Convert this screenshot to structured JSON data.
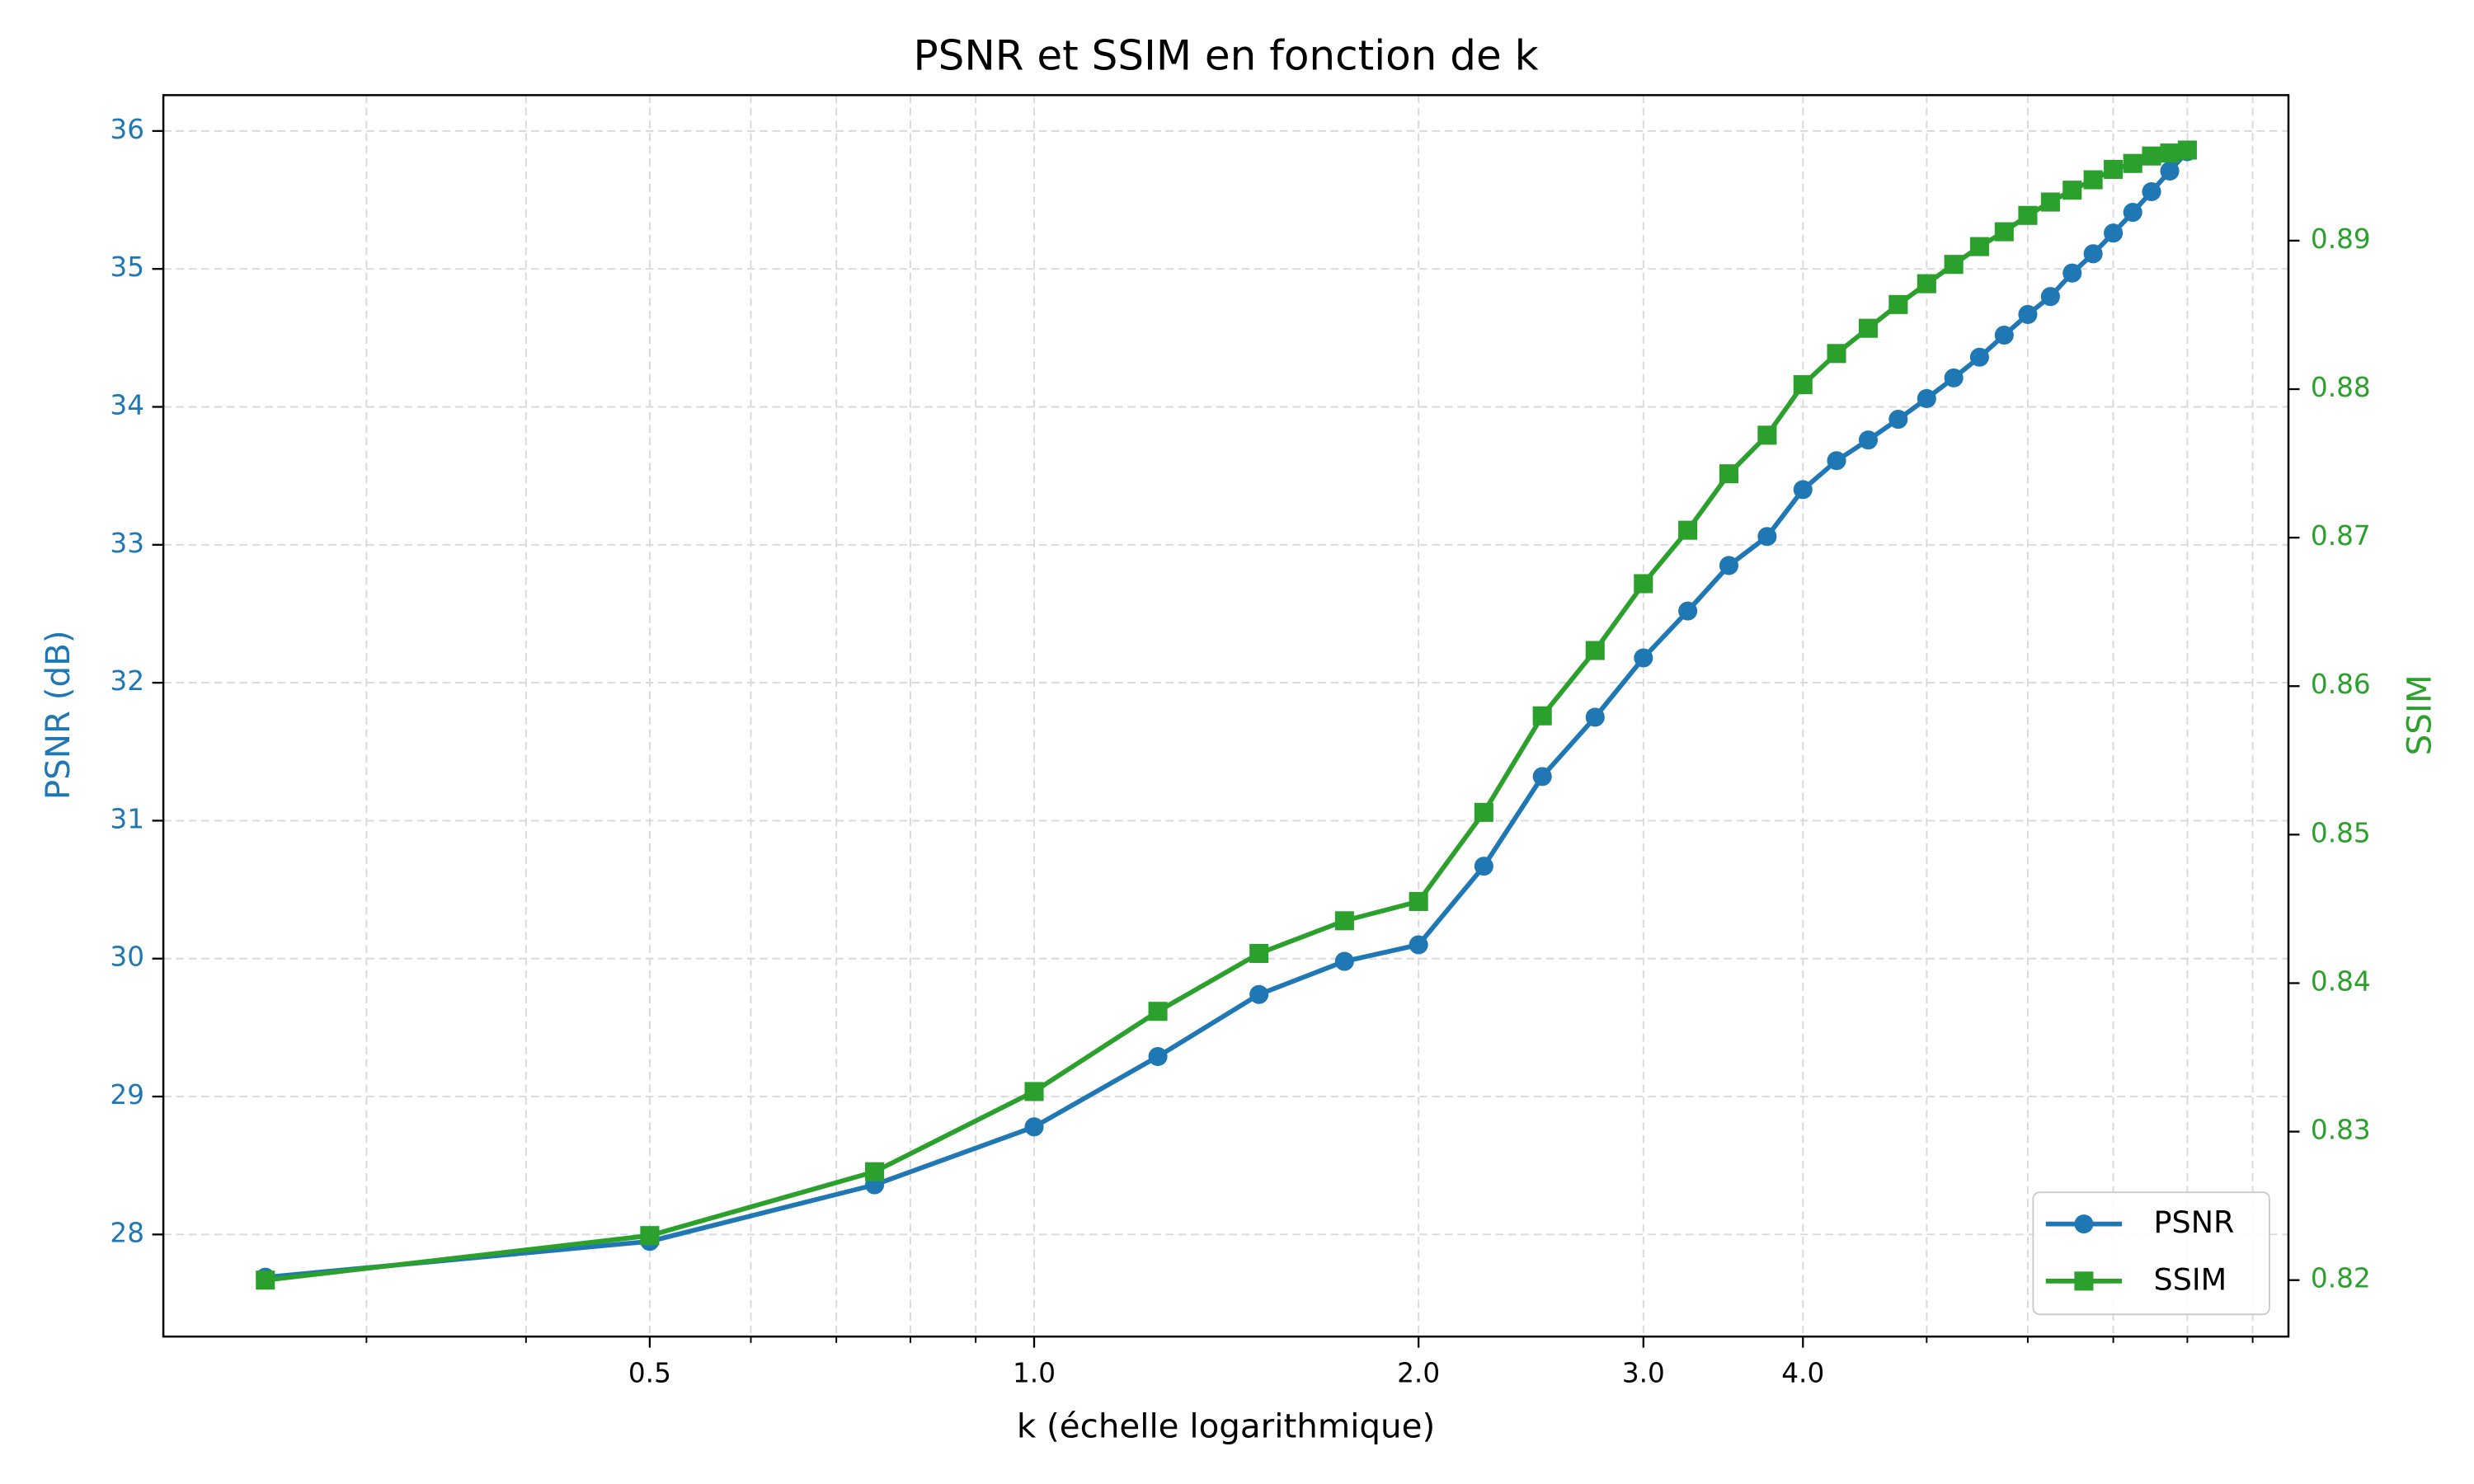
{
  "chart_data": {
    "type": "line",
    "title": "PSNR et SSIM en fonction de k",
    "xlabel": "k (échelle logarithmique)",
    "ylabel": "PSNR (dB)",
    "y2label": "SSIM",
    "xscale": "log",
    "x": [
      0.25,
      0.5,
      0.75,
      1.0,
      1.25,
      1.5,
      1.75,
      2.0,
      2.25,
      2.5,
      2.75,
      3.0,
      3.25,
      3.5,
      3.75,
      4.0,
      4.25,
      4.5,
      4.75,
      5.0,
      5.25,
      5.5,
      5.75,
      6.0,
      6.25,
      6.5,
      6.75,
      7.0,
      7.25,
      7.5,
      7.75,
      8.0
    ],
    "series": [
      {
        "name": "PSNR",
        "color": "#1f77b4",
        "marker": "circle",
        "axis": "y",
        "values": [
          27.69,
          27.95,
          28.36,
          28.78,
          29.29,
          29.74,
          29.98,
          30.1,
          30.67,
          31.32,
          31.75,
          32.18,
          32.52,
          32.85,
          33.06,
          33.4,
          33.61,
          33.76,
          33.91,
          34.06,
          34.21,
          34.36,
          34.52,
          34.67,
          34.8,
          34.97,
          35.11,
          35.26,
          35.41,
          35.56,
          35.71,
          35.85
        ]
      },
      {
        "name": "SSIM",
        "color": "#2ca02c",
        "marker": "square",
        "axis": "y2",
        "values": [
          0.82,
          0.823,
          0.8273,
          0.8327,
          0.8381,
          0.842,
          0.8442,
          0.8455,
          0.8515,
          0.858,
          0.8624,
          0.8669,
          0.8705,
          0.8743,
          0.8769,
          0.8803,
          0.8824,
          0.8841,
          0.8857,
          0.8871,
          0.8884,
          0.8896,
          0.8906,
          0.8917,
          0.8926,
          0.8934,
          0.8941,
          0.8948,
          0.8952,
          0.8957,
          0.8959,
          0.8961
        ]
      }
    ],
    "xlim": [
      0.208,
      9.6
    ],
    "xticks": [
      {
        "value": 0.5,
        "label": "0.5"
      },
      {
        "value": 1,
        "label": "1.0"
      },
      {
        "value": 2,
        "label": "2.0"
      },
      {
        "value": 3,
        "label": "3.0"
      },
      {
        "value": 4,
        "label": "4.0"
      }
    ],
    "xminor_ticks": [
      0.3,
      0.4,
      0.6,
      0.7,
      0.8,
      0.9,
      5,
      6,
      7,
      8,
      9
    ],
    "ylim": [
      27.26,
      36.26
    ],
    "yticks": [
      28,
      29,
      30,
      31,
      32,
      33,
      34,
      35,
      36
    ],
    "y2lim": [
      0.8162,
      0.8998
    ],
    "y2ticks": [
      0.82,
      0.83,
      0.84,
      0.85,
      0.86,
      0.87,
      0.88,
      0.89
    ],
    "grid": true,
    "legend": "lower right"
  }
}
